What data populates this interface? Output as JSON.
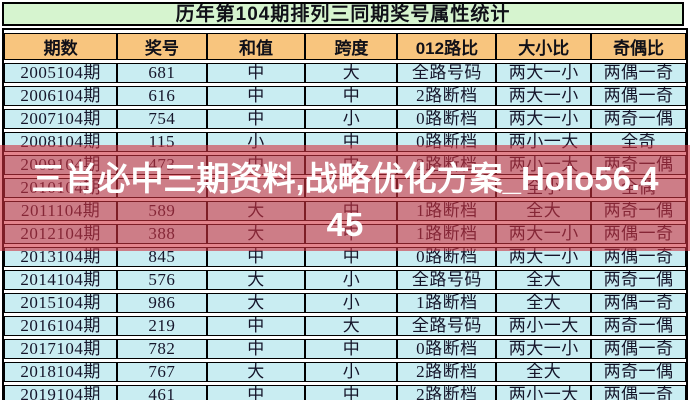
{
  "title": "历年第104期排列三同期奖号属性统计",
  "table": {
    "columns": [
      "期数",
      "奖号",
      "和值",
      "跨度",
      "012路比",
      "大小比",
      "奇偶比"
    ],
    "rows": [
      [
        "2005104期",
        "681",
        "中",
        "大",
        "全路号码",
        "两大一小",
        "两偶一奇"
      ],
      [
        "2006104期",
        "616",
        "中",
        "中",
        "2路断档",
        "两大一小",
        "两偶一奇"
      ],
      [
        "2007104期",
        "754",
        "中",
        "小",
        "0路断档",
        "两大一小",
        "两奇一偶"
      ],
      [
        "2008104期",
        "115",
        "小",
        "中",
        "0路断档",
        "两小一大",
        "全奇"
      ],
      [
        "2009104期",
        "473",
        "中",
        "中",
        "2路断档",
        "两小一大",
        "两奇一偶"
      ],
      [
        "2010104期",
        "",
        "",
        "",
        "",
        "全小",
        "全偶"
      ],
      [
        "2011104期",
        "589",
        "大",
        "中",
        "1路断档",
        "全大",
        "两奇一偶"
      ],
      [
        "2012104期",
        "388",
        "大",
        "中",
        "1路断档",
        "两大一小",
        "两偶一奇"
      ],
      [
        "2013104期",
        "845",
        "中",
        "中",
        "0路断档",
        "两大一小",
        "两偶一奇"
      ],
      [
        "2014104期",
        "576",
        "大",
        "小",
        "全路号码",
        "全大",
        "两奇一偶"
      ],
      [
        "2015104期",
        "986",
        "大",
        "小",
        "1路断档",
        "全大",
        "两偶一奇"
      ],
      [
        "2016104期",
        "219",
        "中",
        "大",
        "全路号码",
        "两小一大",
        "两奇一偶"
      ],
      [
        "2017104期",
        "782",
        "中",
        "中",
        "0路断档",
        "两大一小",
        "两偶一奇"
      ],
      [
        "2018104期",
        "767",
        "大",
        "小",
        "2路断档",
        "全大",
        "两奇一偶"
      ],
      [
        "2019104期",
        "461",
        "中",
        "中",
        "2路断档",
        "两小一大",
        "两偶一奇"
      ]
    ]
  },
  "overlay": {
    "text": "三肖必中三期资料,战略优化方案_Holo56.445",
    "line1": "三肖必中三期资料,战略优化方案_Holo56.4",
    "line2": "45"
  },
  "colors": {
    "title_bg": "#d6f4cf",
    "header_bg": "#f8c57e",
    "row_bg": "#c9edf2",
    "grid": "#000000",
    "text": "#15152a",
    "overlay_bg": "rgba(208,50,64,0.60)",
    "overlay_text": "#ffffff"
  }
}
